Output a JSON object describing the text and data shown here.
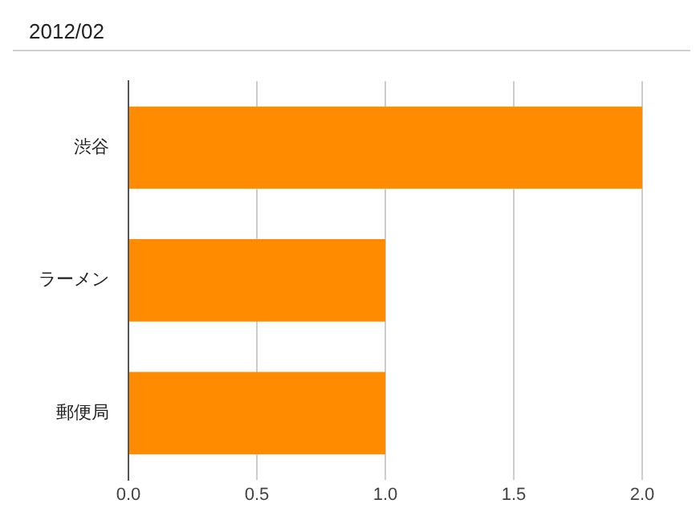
{
  "chart_data": {
    "type": "bar",
    "orientation": "horizontal",
    "title": "2012/02",
    "categories": [
      "渋谷",
      "ラーメン",
      "郵便局"
    ],
    "values": [
      2,
      1,
      1
    ],
    "color": "#ff8c00",
    "xlim": [
      0,
      2
    ],
    "xticks": [
      {
        "value": 0,
        "label": "0.0"
      },
      {
        "value": 0.5,
        "label": "0.5"
      },
      {
        "value": 1,
        "label": "1.0"
      },
      {
        "value": 1.5,
        "label": "1.5"
      },
      {
        "value": 2,
        "label": "2.0"
      }
    ],
    "grid": "x",
    "legend": false
  }
}
